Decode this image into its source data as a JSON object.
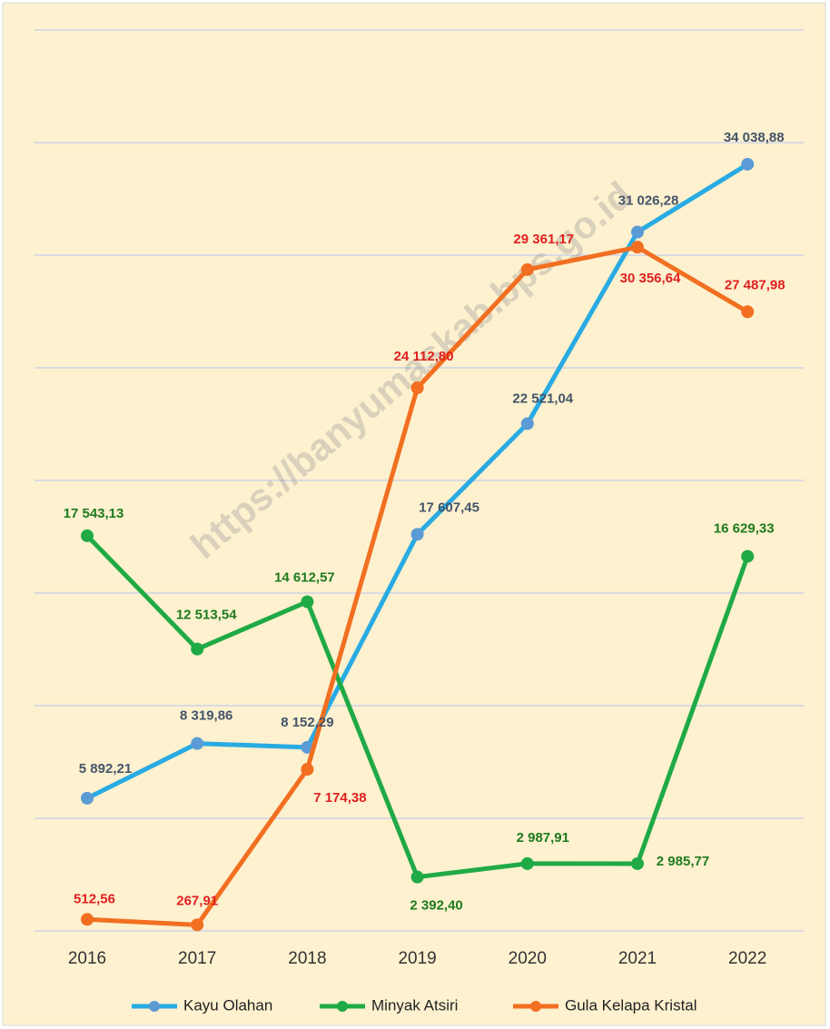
{
  "chart_data": {
    "type": "line",
    "watermark": "https://banyumaskab.bps.go.id",
    "categories": [
      "2016",
      "2017",
      "2018",
      "2019",
      "2020",
      "2021",
      "2022"
    ],
    "ylim": [
      0,
      40000
    ],
    "yticks": [
      0,
      5000,
      10000,
      15000,
      20000,
      25000,
      30000,
      35000,
      40000
    ],
    "grid": true,
    "legend": "bottom",
    "series": [
      {
        "name": "Kayu Olahan",
        "color": "#29abe2",
        "values": [
          5892.21,
          8319.86,
          8152.29,
          17607.45,
          22521.04,
          31026.28,
          34038.88
        ],
        "value_labels": [
          "5 892,21",
          "8 319,86",
          "8 152,29",
          "17 607,45",
          "22 521,04",
          "31 026,28",
          "34 038,88"
        ]
      },
      {
        "name": "Minyak Atsiri",
        "color": "#1faa45",
        "values": [
          17543.13,
          12513.54,
          14612.57,
          2392.4,
          2987.91,
          2985.77,
          16629.33
        ],
        "value_labels": [
          "17 543,13",
          "12 513,54",
          "14 612,57",
          "2 392,40",
          "2 987,91",
          "2 985,77",
          "16 629,33"
        ]
      },
      {
        "name": "Gula Kelapa Kristal",
        "color": "#f26f21",
        "values": [
          512.56,
          267.91,
          7174.38,
          24112.8,
          29361.17,
          30356.64,
          27487.98
        ],
        "value_labels": [
          "512,56",
          "267,91",
          "7 174,38",
          "24 112,80",
          "29 361,17",
          "30 356,64",
          "27 487,98"
        ]
      }
    ]
  }
}
